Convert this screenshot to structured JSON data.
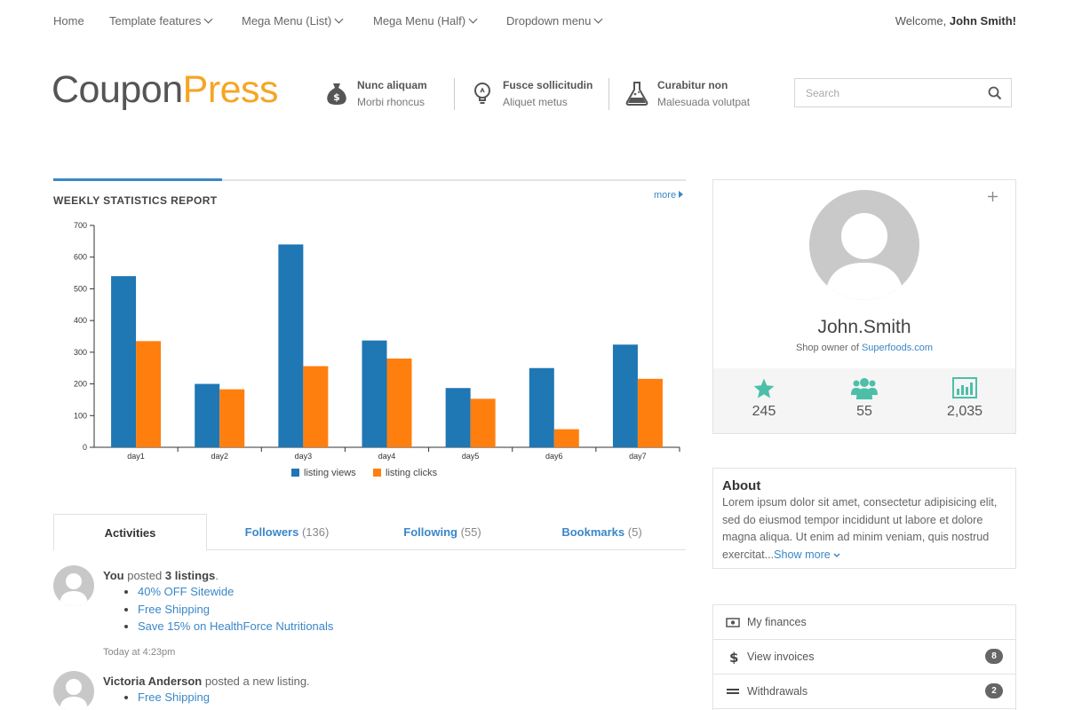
{
  "nav": {
    "items": [
      {
        "label": "Home",
        "dropdown": false
      },
      {
        "label": "Template features",
        "dropdown": true
      },
      {
        "label": "Mega Menu (List)",
        "dropdown": true
      },
      {
        "label": "Mega Menu (Half)",
        "dropdown": true
      },
      {
        "label": "Dropdown menu",
        "dropdown": true
      }
    ],
    "welcome_prefix": "Welcome,",
    "welcome_user": "John Smith!"
  },
  "header": {
    "logo_part1": "Coupon",
    "logo_part2": "Press",
    "features": [
      {
        "icon": "money-bag-icon",
        "title": "Nunc aliquam",
        "subtitle": "Morbi rhoncus"
      },
      {
        "icon": "lightbulb-icon",
        "title": "Fusce sollicitudin",
        "subtitle": "Aliquet metus"
      },
      {
        "icon": "flask-icon",
        "title": "Curabitur non",
        "subtitle": "Malesuada volutpat"
      }
    ],
    "search_placeholder": "Search"
  },
  "stats_panel": {
    "title": "WEEKLY STATISTICS REPORT",
    "more_label": "more"
  },
  "chart_data": {
    "type": "bar",
    "title": "",
    "xlabel": "",
    "ylabel": "",
    "ylim": [
      0,
      700
    ],
    "yticks": [
      0,
      100,
      200,
      300,
      400,
      500,
      600,
      700
    ],
    "categories": [
      "day1",
      "day2",
      "day3",
      "day4",
      "day5",
      "day6",
      "day7"
    ],
    "series": [
      {
        "name": "listing views",
        "color": "#1f77b4",
        "values": [
          540,
          200,
          640,
          337,
          187,
          250,
          324
        ]
      },
      {
        "name": "listing clicks",
        "color": "#ff7f0e",
        "values": [
          335,
          183,
          256,
          280,
          153,
          57,
          216
        ]
      }
    ],
    "legend_position": "bottom-center",
    "grid": false
  },
  "tabs": [
    {
      "label": "Activities",
      "count": "",
      "active": true
    },
    {
      "label": "Followers",
      "count": "(136)",
      "active": false
    },
    {
      "label": "Following",
      "count": "(55)",
      "active": false
    },
    {
      "label": "Bookmarks",
      "count": "(5)",
      "active": false
    }
  ],
  "activities": [
    {
      "user": "You",
      "action": "posted",
      "object": "3 listings",
      "suffix": ".",
      "items": [
        "40% OFF Sitewide",
        "Free Shipping",
        "Save 15% on HealthForce Nutritionals"
      ],
      "time": "Today at 4:23pm"
    },
    {
      "user": "Victoria Anderson",
      "action": "posted a new listing.",
      "object": "",
      "suffix": "",
      "items": [
        "Free Shipping"
      ],
      "time": ""
    }
  ],
  "profile": {
    "name": "John.Smith",
    "owner_prefix": "Shop owner of",
    "owner_link": "Superfoods.com",
    "stats": [
      {
        "icon": "star-icon",
        "value": "245"
      },
      {
        "icon": "users-icon",
        "value": "55"
      },
      {
        "icon": "bar-chart-icon",
        "value": "2,035"
      }
    ],
    "accent_color": "#4dbfa8"
  },
  "about": {
    "title": "About",
    "text": "Lorem ipsum dolor sit amet, consectetur adipisicing elit, sed do eiusmod tempor incididunt ut labore et dolore magna aliqua. Ut enim ad minim veniam, quis nostrud exercitat...",
    "show_more": "Show more"
  },
  "finances": [
    {
      "icon": "money-icon",
      "label": "My finances",
      "badge": ""
    },
    {
      "icon": "dollar-icon",
      "label": "View invoices",
      "badge": "8"
    },
    {
      "icon": "transfer-icon",
      "label": "Withdrawals",
      "badge": "2"
    }
  ],
  "colors": {
    "link": "#3a87c8",
    "logo_accent": "#f5a623",
    "series_views": "#1f77b4",
    "series_clicks": "#ff7f0e"
  }
}
